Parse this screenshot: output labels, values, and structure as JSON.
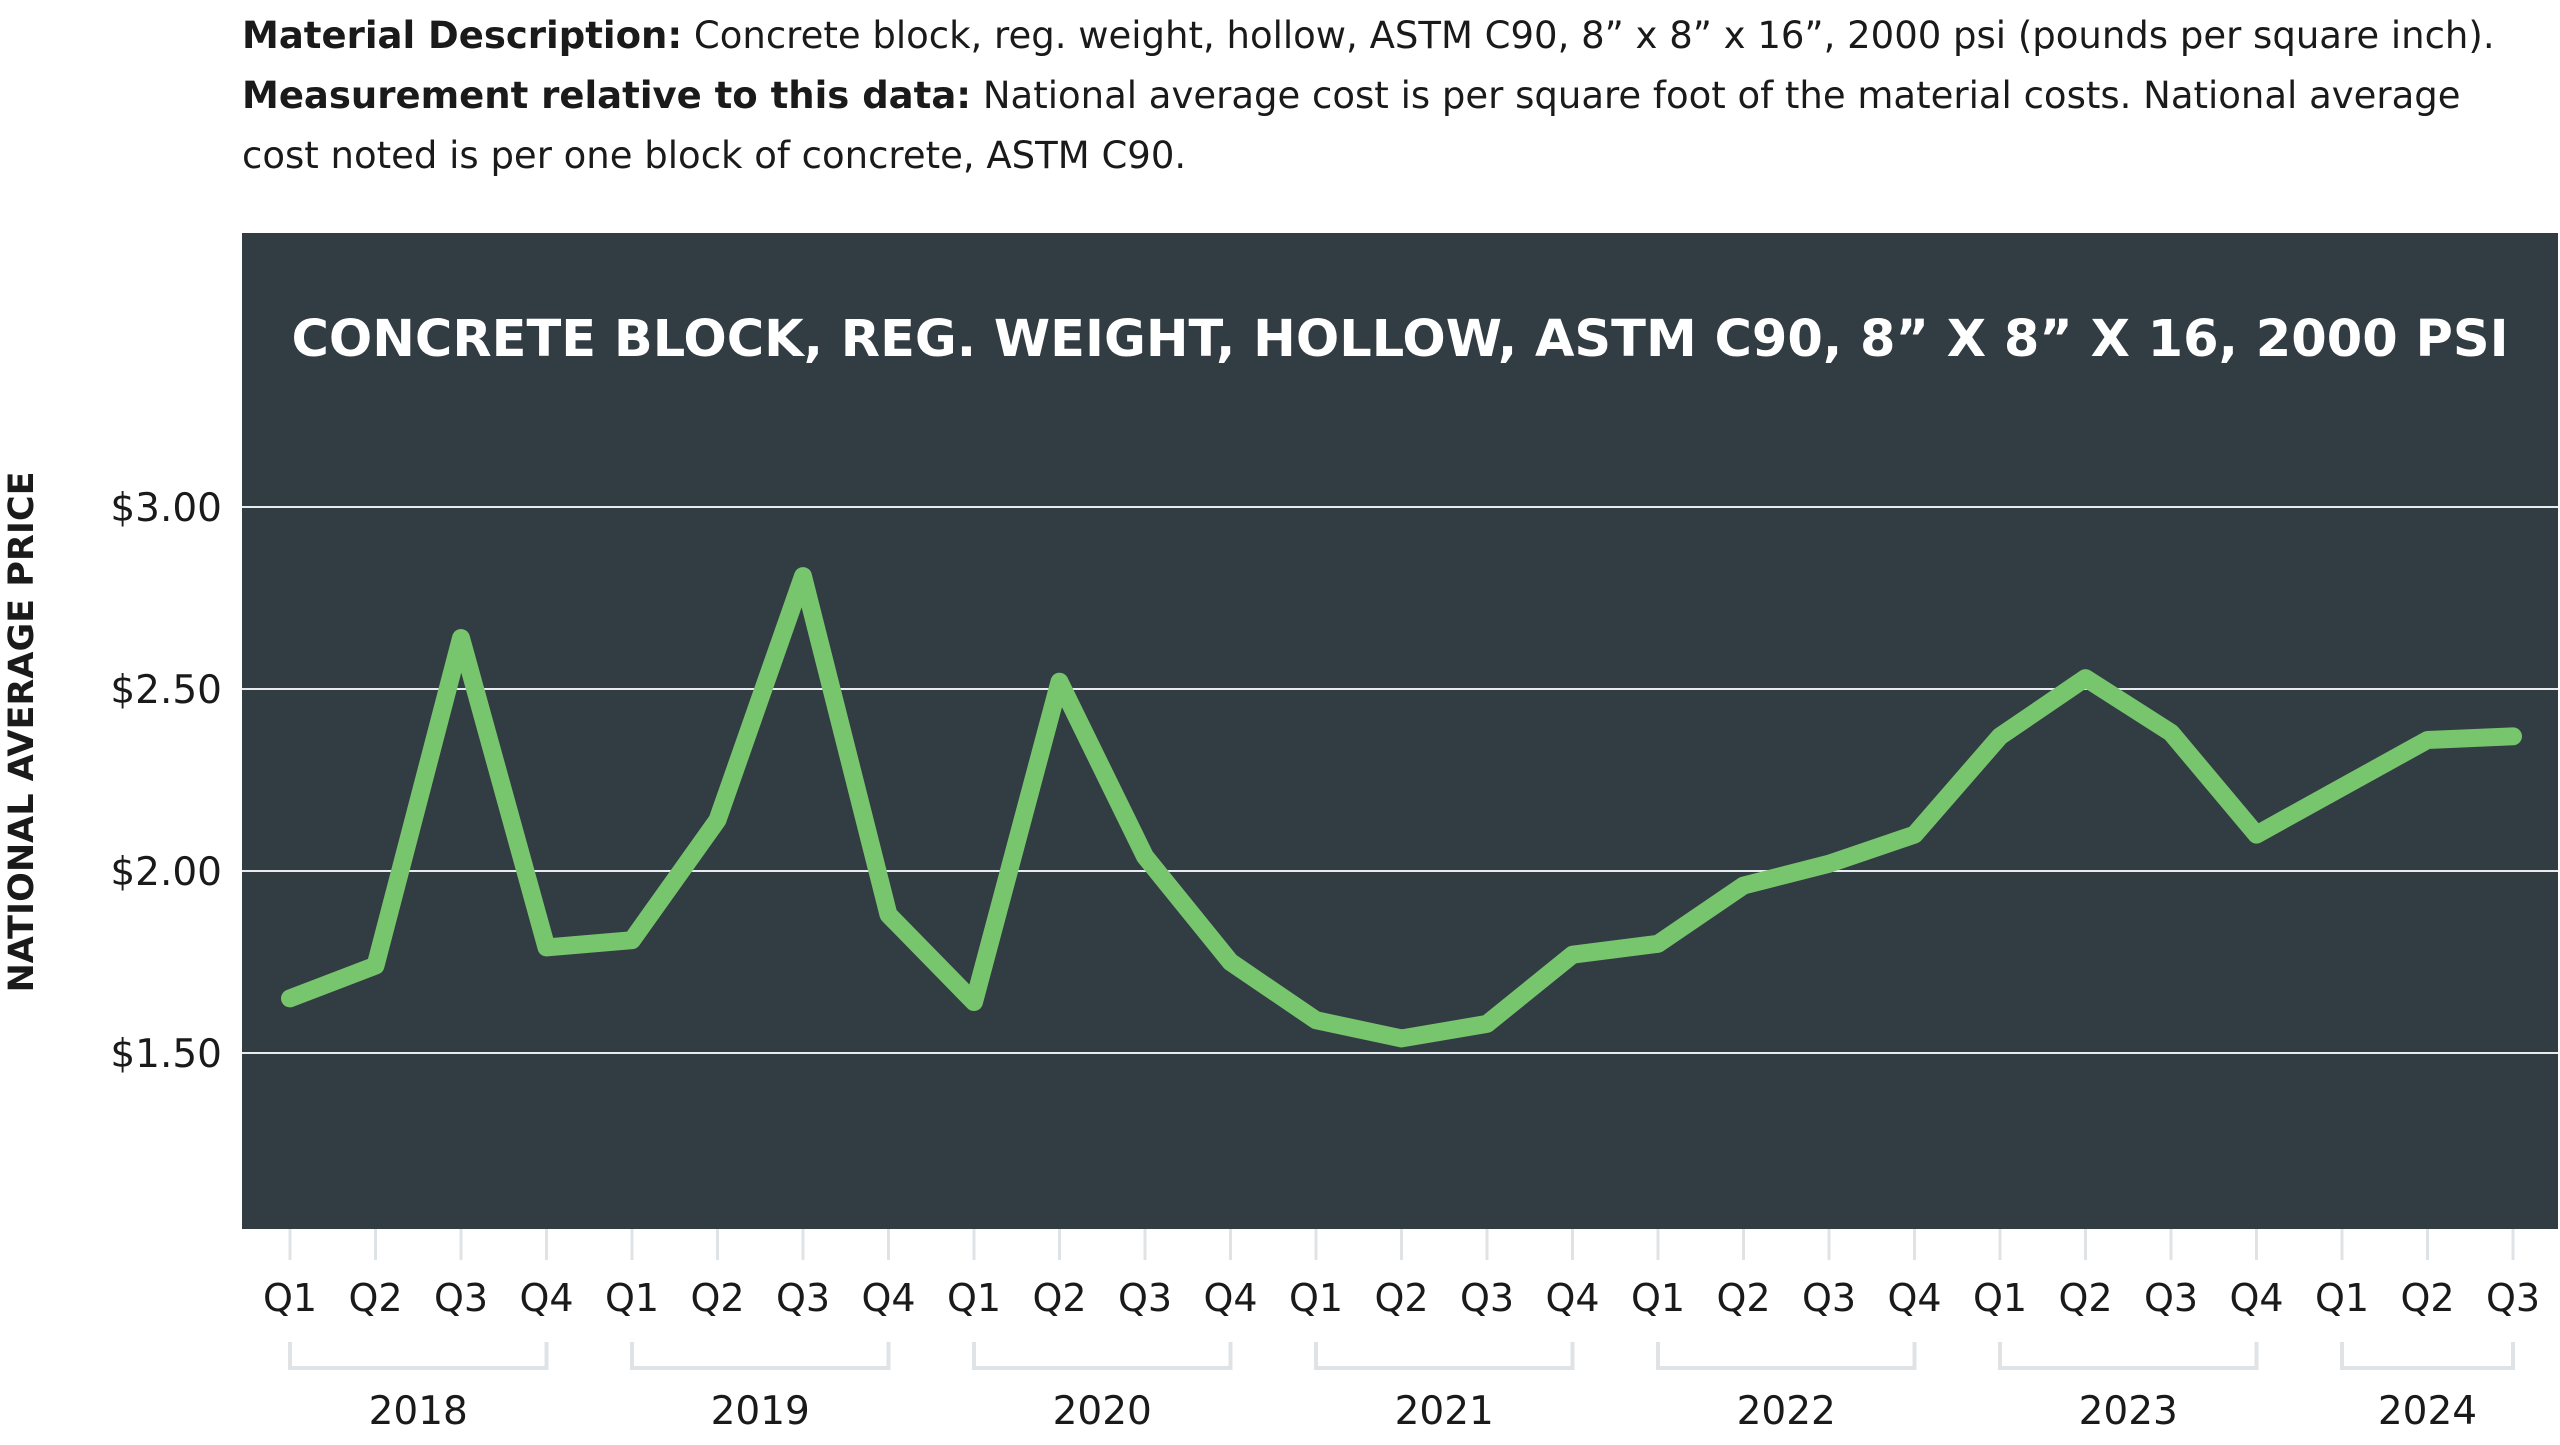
{
  "description": {
    "material_label": "Material Description:",
    "material_text": " Concrete block, reg. weight, hollow, ASTM C90, 8” x 8” x 16”, 2000 psi (pounds per square inch).",
    "measurement_label": "Measurement relative to this data:",
    "measurement_text": " National average cost is per square foot of the material costs. National average cost noted is per one block of concrete, ASTM C90."
  },
  "colors": {
    "panel": "#323c43",
    "line": "#77c56d",
    "grid": "#e8ecee",
    "title": "#ffffff",
    "ticks": "#1a1a1a"
  },
  "chart_data": {
    "type": "line",
    "title": "CONCRETE BLOCK, REG. WEIGHT, HOLLOW, ASTM C90, 8” X 8” X 16, 2000 PSI",
    "xlabel": "",
    "ylabel": "NATIONAL AVERAGE PRICE",
    "ylim": [
      1.0,
      3.0
    ],
    "yticks": [
      1.5,
      2.0,
      2.5,
      3.0
    ],
    "ytick_labels": [
      "$1.50",
      "$2.00",
      "$2.50",
      "$3.00"
    ],
    "grid": true,
    "legend": "none",
    "years": [
      {
        "label": "2018",
        "quarters": [
          "Q1",
          "Q2",
          "Q3",
          "Q4"
        ]
      },
      {
        "label": "2019",
        "quarters": [
          "Q1",
          "Q2",
          "Q3",
          "Q4"
        ]
      },
      {
        "label": "2020",
        "quarters": [
          "Q1",
          "Q2",
          "Q3",
          "Q4"
        ]
      },
      {
        "label": "2021",
        "quarters": [
          "Q1",
          "Q2",
          "Q3",
          "Q4"
        ]
      },
      {
        "label": "2022",
        "quarters": [
          "Q1",
          "Q2",
          "Q3",
          "Q4"
        ]
      },
      {
        "label": "2023",
        "quarters": [
          "Q1",
          "Q2",
          "Q3",
          "Q4"
        ]
      },
      {
        "label": "2024",
        "quarters": [
          "Q1",
          "Q2",
          "Q3"
        ]
      }
    ],
    "series": [
      {
        "values": [
          1.65,
          1.74,
          2.64,
          1.79,
          1.81,
          2.14,
          2.81,
          1.88,
          1.64,
          2.52,
          2.04,
          1.75,
          1.59,
          1.54,
          1.58,
          1.77,
          1.8,
          1.96,
          2.02,
          2.1,
          2.37,
          2.53,
          2.38,
          2.1,
          2.23,
          2.36,
          2.37
        ]
      }
    ]
  }
}
